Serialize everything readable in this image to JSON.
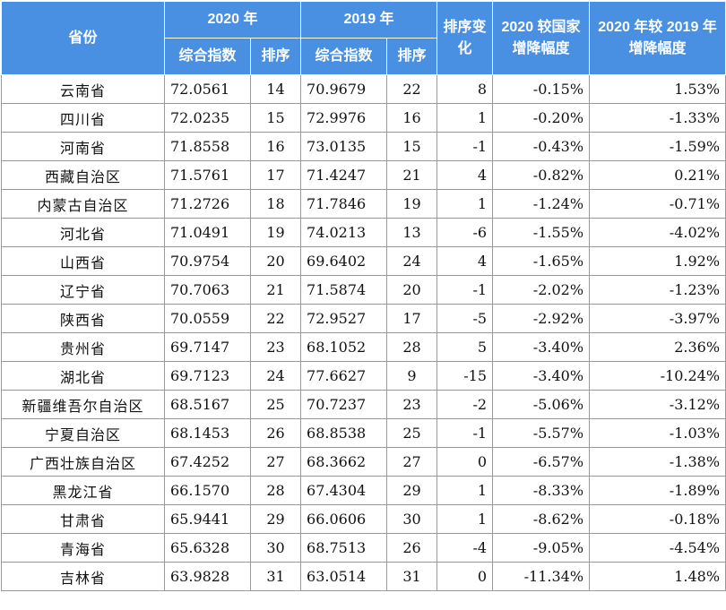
{
  "header": {
    "province": "省份",
    "year2020": "2020 年",
    "year2019": "2019 年",
    "rank_change": "排序变化",
    "vs_national": "2020 较国家增降幅度",
    "vs_2019": "2020 年较 2019 年增降幅度",
    "index_2020": "综合指数",
    "rank_2020": "排序",
    "index_2019": "综合指数",
    "rank_2019": "排序"
  },
  "rows": [
    {
      "province": "云南省",
      "index_2020": "72.0561",
      "rank_2020": "14",
      "index_2019": "70.9679",
      "rank_2019": "22",
      "change": "8",
      "vs_national": "-0.15%",
      "vs_2019": "1.53%"
    },
    {
      "province": "四川省",
      "index_2020": "72.0235",
      "rank_2020": "15",
      "index_2019": "72.9976",
      "rank_2019": "16",
      "change": "1",
      "vs_national": "-0.20%",
      "vs_2019": "-1.33%"
    },
    {
      "province": "河南省",
      "index_2020": "71.8558",
      "rank_2020": "16",
      "index_2019": "73.0135",
      "rank_2019": "15",
      "change": "-1",
      "vs_national": "-0.43%",
      "vs_2019": "-1.59%"
    },
    {
      "province": "西藏自治区",
      "index_2020": "71.5761",
      "rank_2020": "17",
      "index_2019": "71.4247",
      "rank_2019": "21",
      "change": "4",
      "vs_national": "-0.82%",
      "vs_2019": "0.21%"
    },
    {
      "province": "内蒙古自治区",
      "index_2020": "71.2726",
      "rank_2020": "18",
      "index_2019": "71.7846",
      "rank_2019": "19",
      "change": "1",
      "vs_national": "-1.24%",
      "vs_2019": "-0.71%"
    },
    {
      "province": "河北省",
      "index_2020": "71.0491",
      "rank_2020": "19",
      "index_2019": "74.0213",
      "rank_2019": "13",
      "change": "-6",
      "vs_national": "-1.55%",
      "vs_2019": "-4.02%"
    },
    {
      "province": "山西省",
      "index_2020": "70.9754",
      "rank_2020": "20",
      "index_2019": "69.6402",
      "rank_2019": "24",
      "change": "4",
      "vs_national": "-1.65%",
      "vs_2019": "1.92%"
    },
    {
      "province": "辽宁省",
      "index_2020": "70.7063",
      "rank_2020": "21",
      "index_2019": "71.5874",
      "rank_2019": "20",
      "change": "-1",
      "vs_national": "-2.02%",
      "vs_2019": "-1.23%"
    },
    {
      "province": "陕西省",
      "index_2020": "70.0559",
      "rank_2020": "22",
      "index_2019": "72.9527",
      "rank_2019": "17",
      "change": "-5",
      "vs_national": "-2.92%",
      "vs_2019": "-3.97%"
    },
    {
      "province": "贵州省",
      "index_2020": "69.7147",
      "rank_2020": "23",
      "index_2019": "68.1052",
      "rank_2019": "28",
      "change": "5",
      "vs_national": "-3.40%",
      "vs_2019": "2.36%"
    },
    {
      "province": "湖北省",
      "index_2020": "69.7123",
      "rank_2020": "24",
      "index_2019": "77.6627",
      "rank_2019": "9",
      "change": "-15",
      "vs_national": "-3.40%",
      "vs_2019": "-10.24%"
    },
    {
      "province": "新疆维吾尔自治区",
      "index_2020": "68.5167",
      "rank_2020": "25",
      "index_2019": "70.7237",
      "rank_2019": "23",
      "change": "-2",
      "vs_national": "-5.06%",
      "vs_2019": "-3.12%"
    },
    {
      "province": "宁夏自治区",
      "index_2020": "68.1453",
      "rank_2020": "26",
      "index_2019": "68.8538",
      "rank_2019": "25",
      "change": "-1",
      "vs_national": "-5.57%",
      "vs_2019": "-1.03%"
    },
    {
      "province": "广西壮族自治区",
      "index_2020": "67.4252",
      "rank_2020": "27",
      "index_2019": "68.3662",
      "rank_2019": "27",
      "change": "0",
      "vs_national": "-6.57%",
      "vs_2019": "-1.38%"
    },
    {
      "province": "黑龙江省",
      "index_2020": "66.1570",
      "rank_2020": "28",
      "index_2019": "67.4304",
      "rank_2019": "29",
      "change": "1",
      "vs_national": "-8.33%",
      "vs_2019": "-1.89%"
    },
    {
      "province": "甘肃省",
      "index_2020": "65.9441",
      "rank_2020": "29",
      "index_2019": "66.0606",
      "rank_2019": "30",
      "change": "1",
      "vs_national": "-8.62%",
      "vs_2019": "-0.18%"
    },
    {
      "province": "青海省",
      "index_2020": "65.6328",
      "rank_2020": "30",
      "index_2019": "68.7513",
      "rank_2019": "26",
      "change": "-4",
      "vs_national": "-9.05%",
      "vs_2019": "-4.54%"
    },
    {
      "province": "吉林省",
      "index_2020": "63.9828",
      "rank_2020": "31",
      "index_2019": "63.0514",
      "rank_2019": "31",
      "change": "0",
      "vs_national": "-11.34%",
      "vs_2019": "1.48%"
    }
  ]
}
